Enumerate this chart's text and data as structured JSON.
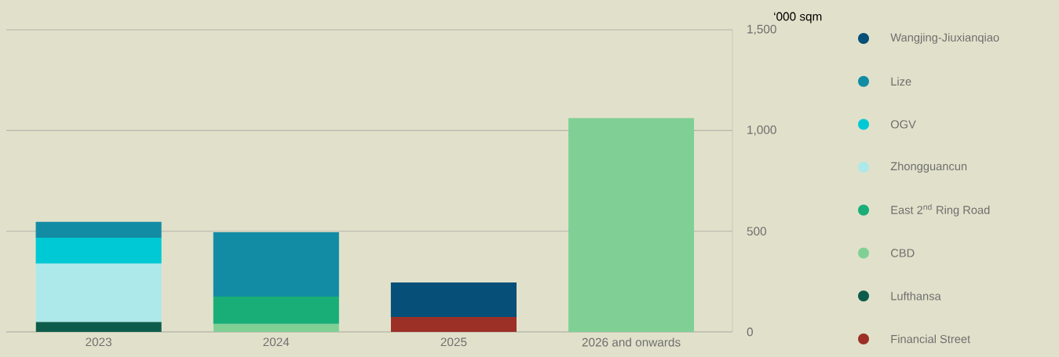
{
  "chart_data": {
    "type": "bar",
    "stacked": true,
    "ylabel": "‘000 sqm",
    "categories": [
      "2023",
      "2024",
      "2025",
      "2026 and onwards"
    ],
    "ylim": [
      0,
      1500
    ],
    "yticks": [
      {
        "value": 0,
        "label": "0"
      },
      {
        "value": 500,
        "label": "500"
      },
      {
        "value": 1000,
        "label": "1,000"
      },
      {
        "value": 1500,
        "label": "1,500"
      }
    ],
    "grid": "y",
    "legend": "right",
    "series": [
      {
        "name": "Financial Street",
        "color": "#9c3026",
        "values": [
          null,
          null,
          74,
          null
        ]
      },
      {
        "name": "Lufthansa",
        "color": "#0d5c4b",
        "values": [
          50,
          null,
          null,
          null
        ]
      },
      {
        "name": "CBD",
        "color": "#80d095",
        "values": [
          null,
          40,
          null,
          1062
        ]
      },
      {
        "name": "East 2$^{nd}$ Ring Road",
        "color": "#19ae78",
        "values": [
          null,
          135,
          null,
          null
        ]
      },
      {
        "name": "Zhongguancun",
        "color": "#ade8ea",
        "values": [
          290,
          null,
          null,
          null
        ]
      },
      {
        "name": "OGV",
        "color": "#00c9d6",
        "values": [
          128,
          null,
          null,
          null
        ]
      },
      {
        "name": "Lize",
        "color": "#128ca4",
        "values": [
          78,
          320,
          null,
          null
        ]
      },
      {
        "name": "Wangjing-Jiuxianqiao",
        "color": "#064f78",
        "values": [
          null,
          null,
          171,
          null
        ]
      }
    ]
  }
}
